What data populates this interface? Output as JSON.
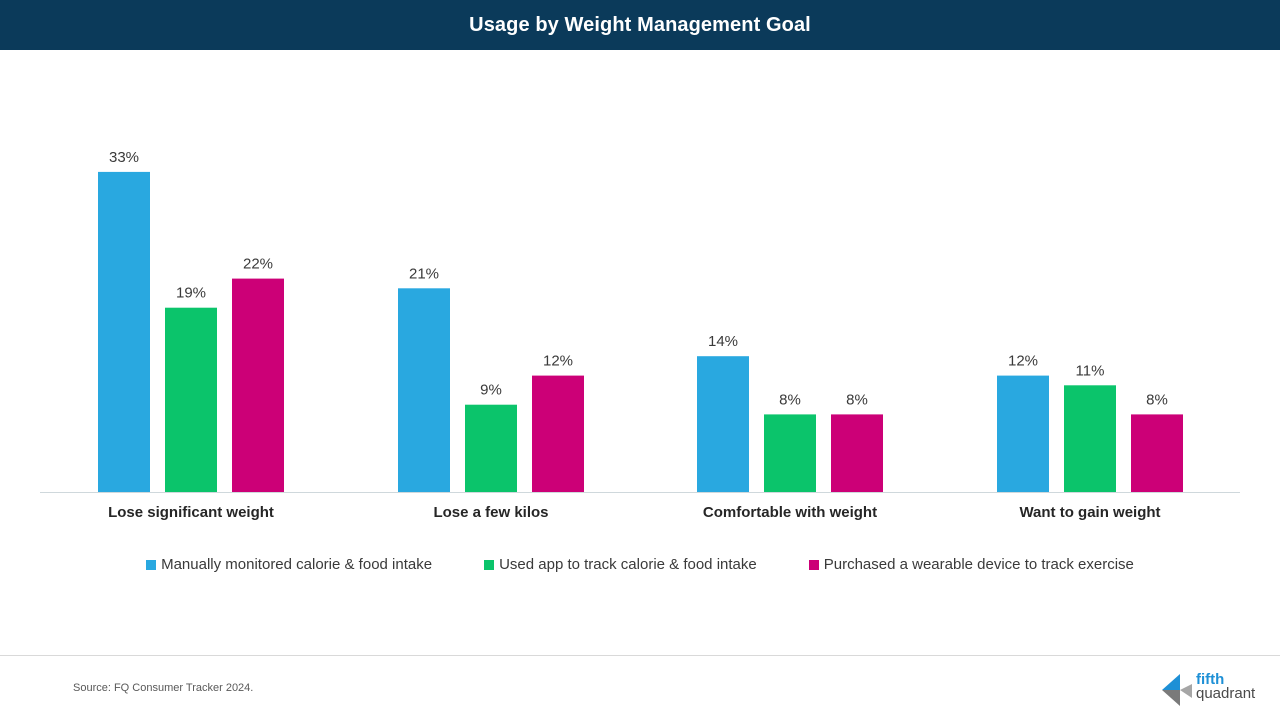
{
  "header": {
    "title": "Usage by Weight Management Goal"
  },
  "chart_data": {
    "type": "bar",
    "title": "Usage by Weight Management Goal",
    "categories": [
      "Lose significant weight",
      "Lose a few kilos",
      "Comfortable with weight",
      "Want to gain weight"
    ],
    "series": [
      {
        "name": "Manually monitored calorie & food intake",
        "color": "#29a8e0",
        "values": [
          33,
          21,
          14,
          12
        ]
      },
      {
        "name": "Used app to track calorie & food intake",
        "color": "#0bc46b",
        "values": [
          19,
          9,
          8,
          11
        ]
      },
      {
        "name": "Purchased a wearable device to track exercise",
        "color": "#cc0077",
        "values": [
          22,
          12,
          8,
          8
        ]
      }
    ],
    "value_suffix": "%",
    "ylim": [
      0,
      35
    ],
    "grid": false,
    "legend_position": "bottom",
    "xlabel": "",
    "ylabel": ""
  },
  "footer": {
    "source": "Source: FQ Consumer Tracker 2024.",
    "logo_line1": "fifth",
    "logo_line2": "quadrant",
    "axis_color": "#cfd8dc"
  }
}
